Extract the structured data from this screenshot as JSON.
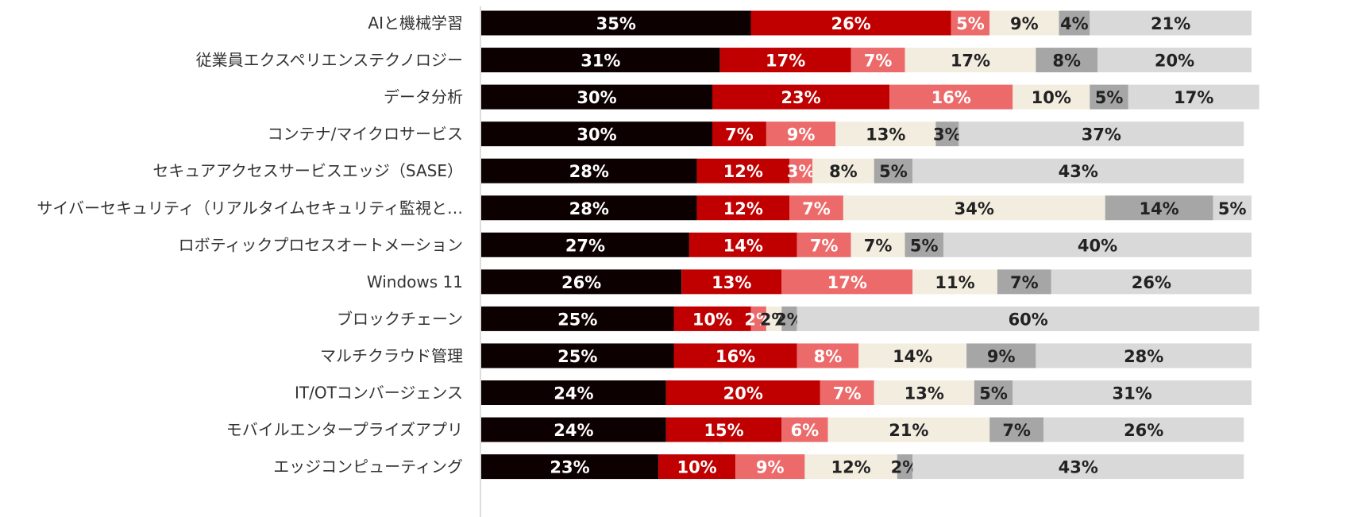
{
  "chart_data": {
    "type": "stacked-bar-horizontal",
    "categories": [
      "AIと機械学習",
      "従業員エクスペリエンステクノロジー",
      "データ分析",
      "コンテナ/マイクロサービス",
      "セキュアアクセスサービスエッジ（SASE）",
      "サイバーセキュリティ（リアルタイムセキュリティ監視と…",
      "ロボティックプロセスオートメーション",
      "Windows 11",
      "ブロックチェーン",
      "マルチクラウド管理",
      "IT/OTコンバージェンス",
      "モバイルエンタープライズアプリ",
      "エッジコンピューティング"
    ],
    "xlim": [
      0,
      100
    ],
    "series": [
      {
        "color": "#0d0000",
        "values": [
          35,
          31,
          30,
          30,
          28,
          28,
          27,
          26,
          25,
          25,
          24,
          24,
          23
        ],
        "value_labels": [
          "35%",
          "31%",
          "30%",
          "30%",
          "28%",
          "28%",
          "27%",
          "26%",
          "25%",
          "25%",
          "24%",
          "24%",
          "23%"
        ]
      },
      {
        "color": "#c00000",
        "values": [
          26,
          17,
          23,
          7,
          12,
          12,
          14,
          13,
          10,
          16,
          20,
          15,
          10
        ],
        "value_labels": [
          "26%",
          "17%",
          "23%",
          "7%",
          "12%",
          "12%",
          "14%",
          "13%",
          "10%",
          "16%",
          "20%",
          "15%",
          "10%"
        ]
      },
      {
        "color": "#ec6a6a",
        "values": [
          5,
          7,
          16,
          9,
          3,
          7,
          7,
          17,
          2,
          8,
          7,
          6,
          9
        ],
        "value_labels": [
          "5%",
          "7%",
          "16%",
          "9%",
          "3%",
          "7%",
          "7%",
          "17%",
          "2%",
          "8%",
          "7%",
          "6%",
          "9%"
        ]
      },
      {
        "color": "#f3ede0",
        "values": [
          9,
          17,
          10,
          13,
          8,
          34,
          7,
          11,
          2,
          14,
          13,
          21,
          12
        ],
        "value_labels": [
          "9%",
          "17%",
          "10%",
          "13%",
          "8%",
          "34%",
          "7%",
          "11%",
          "2%",
          "14%",
          "13%",
          "21%",
          "12%"
        ]
      },
      {
        "color": "#a6a6a6",
        "values": [
          4,
          8,
          5,
          3,
          5,
          14,
          5,
          7,
          2,
          9,
          5,
          7,
          2
        ],
        "value_labels": [
          "4%",
          "8%",
          "5%",
          "3%",
          "5%",
          "14%",
          "5%",
          "7%",
          "2%",
          "9%",
          "5%",
          "7%",
          "2%"
        ]
      },
      {
        "color": "#d9d9d9",
        "values": [
          21,
          20,
          17,
          37,
          43,
          5,
          40,
          26,
          60,
          28,
          31,
          26,
          43
        ],
        "value_labels": [
          "21%",
          "20%",
          "17%",
          "37%",
          "43%",
          "5%",
          "40%",
          "26%",
          "60%",
          "28%",
          "31%",
          "26%",
          "43%"
        ]
      }
    ]
  }
}
